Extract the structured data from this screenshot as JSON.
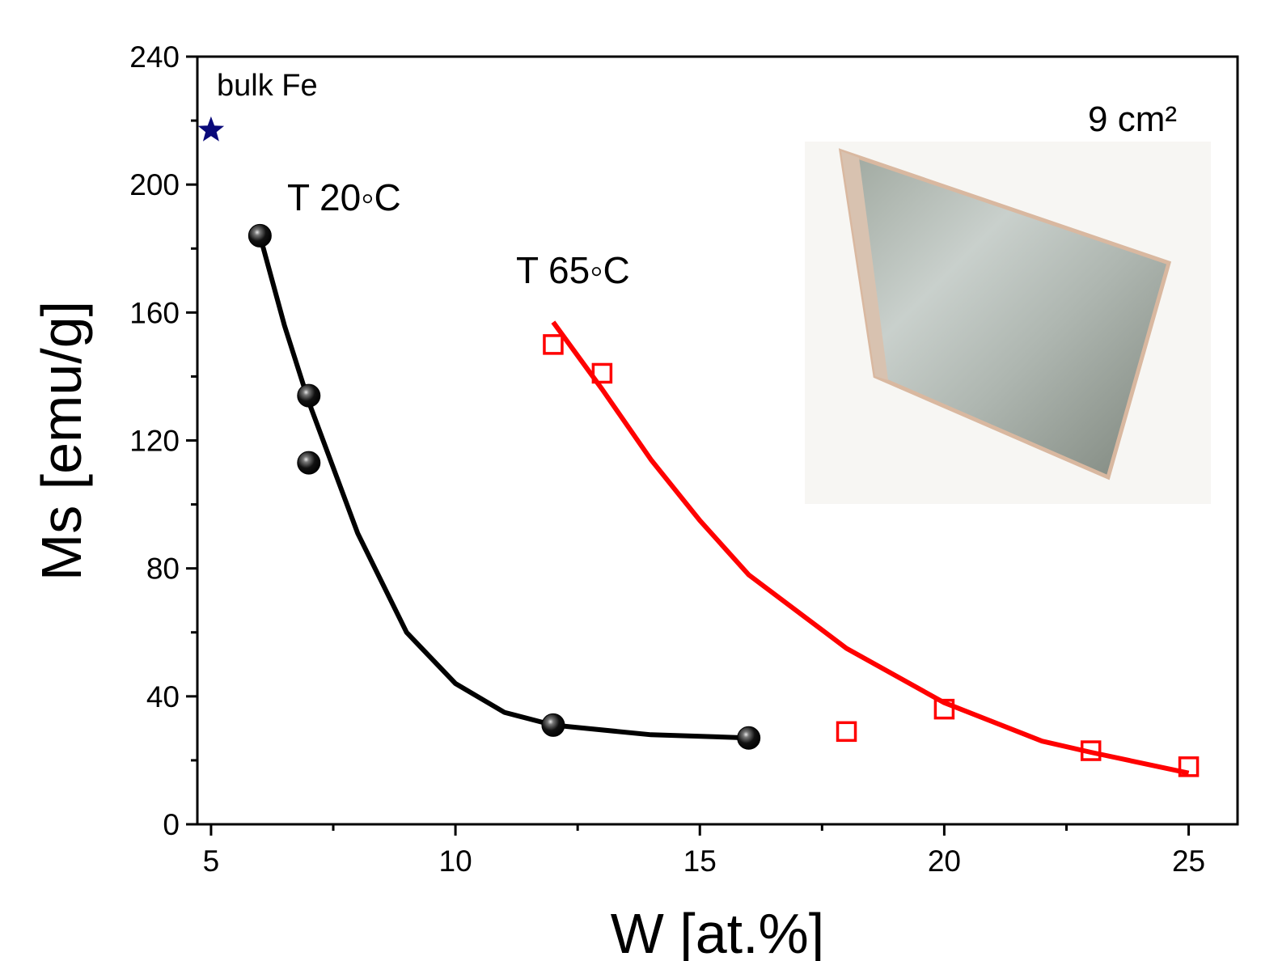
{
  "chart_data": {
    "type": "scatter",
    "x_label": "W [at.%]",
    "y_label": "Ms [emu/g]",
    "xlim": [
      4.72,
      26
    ],
    "ylim": [
      0,
      240
    ],
    "xticks": [
      5,
      10,
      15,
      20,
      25
    ],
    "yticks": [
      0,
      40,
      80,
      120,
      160,
      200,
      240
    ],
    "xminorticks": [
      7.5,
      12.5,
      17.5,
      22.5
    ],
    "yminorticks": [
      20,
      60,
      100,
      140,
      180,
      220
    ],
    "annotations": [
      "bulk Fe",
      "T 20◦C",
      "T 65◦C",
      "9 cm²"
    ],
    "series": [
      {
        "marker": "star",
        "color": "#0a0a7a",
        "x": [
          5
        ],
        "values": [
          217
        ]
      },
      {
        "marker": "ball",
        "color": "#000000",
        "x": [
          6,
          7,
          7,
          12,
          16
        ],
        "values": [
          184,
          134,
          113,
          31,
          27
        ]
      },
      {
        "marker": "square",
        "color": "#ff0000",
        "x": [
          12,
          13,
          18,
          20,
          23,
          25
        ],
        "values": [
          150,
          141,
          29,
          36,
          23,
          18
        ]
      },
      {
        "marker": "line",
        "color": "#000000",
        "x": [
          6,
          6.5,
          7,
          8,
          9,
          10,
          11,
          12,
          14,
          16
        ],
        "values": [
          184,
          156,
          132,
          91,
          60,
          44,
          35,
          31,
          28,
          27
        ]
      },
      {
        "marker": "line",
        "color": "#ff0000",
        "x": [
          12,
          13,
          14,
          15,
          16,
          18,
          20,
          22,
          23,
          25
        ],
        "values": [
          157,
          136,
          114,
          95,
          78,
          55,
          38,
          26,
          22.5,
          16
        ]
      }
    ]
  }
}
